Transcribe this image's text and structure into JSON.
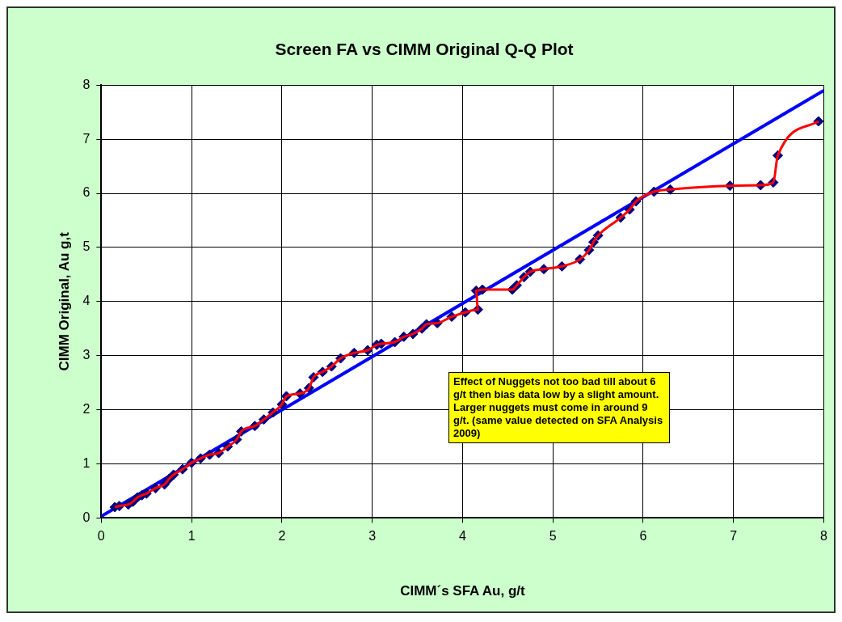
{
  "chart_data": {
    "type": "scatter",
    "title": "Screen FA vs CIMM Original Q-Q Plot",
    "xlabel": "CIMM´s SFA Au, g/t",
    "ylabel": "CIMM Original, Au g,t",
    "x": [
      0.15,
      0.2,
      0.3,
      0.35,
      0.4,
      0.45,
      0.5,
      0.6,
      0.7,
      0.75,
      0.8,
      0.9,
      1.0,
      1.1,
      1.2,
      1.3,
      1.4,
      1.5,
      1.55,
      1.7,
      1.8,
      1.9,
      2.0,
      2.05,
      2.2,
      2.3,
      2.35,
      2.45,
      2.55,
      2.65,
      2.8,
      2.95,
      3.05,
      3.1,
      3.25,
      3.35,
      3.45,
      3.55,
      3.6,
      3.72,
      3.88,
      4.03,
      4.17,
      4.15,
      4.22,
      4.55,
      4.6,
      4.68,
      4.75,
      4.9,
      5.1,
      5.3,
      5.4,
      5.45,
      5.5,
      5.75,
      5.85,
      5.92,
      6.12,
      6.3,
      6.96,
      7.3,
      7.44,
      7.49,
      7.94
    ],
    "series": [
      {
        "type": "line",
        "color": "#ff0000",
        "marker": "none",
        "values": [
          0.2,
          0.22,
          0.25,
          0.3,
          0.38,
          0.42,
          0.45,
          0.55,
          0.62,
          0.72,
          0.8,
          0.9,
          1.02,
          1.1,
          1.17,
          1.2,
          1.32,
          1.45,
          1.6,
          1.7,
          1.82,
          1.95,
          2.1,
          2.25,
          2.3,
          2.4,
          2.6,
          2.7,
          2.8,
          2.95,
          3.05,
          3.1,
          3.2,
          3.22,
          3.25,
          3.35,
          3.4,
          3.5,
          3.58,
          3.6,
          3.72,
          3.8,
          3.85,
          4.2,
          4.22,
          4.22,
          4.3,
          4.45,
          4.55,
          4.6,
          4.65,
          4.78,
          4.95,
          5.1,
          5.22,
          5.55,
          5.7,
          5.85,
          6.03,
          6.07,
          6.14,
          6.15,
          6.2,
          6.7,
          7.33
        ]
      },
      {
        "type": "scatter",
        "color": "#000080",
        "marker": "diamond",
        "values": [
          0.2,
          0.22,
          0.25,
          0.3,
          0.38,
          0.42,
          0.45,
          0.55,
          0.62,
          0.72,
          0.8,
          0.9,
          1.02,
          1.1,
          1.17,
          1.2,
          1.32,
          1.45,
          1.6,
          1.7,
          1.82,
          1.95,
          2.1,
          2.25,
          2.3,
          2.4,
          2.6,
          2.7,
          2.8,
          2.95,
          3.05,
          3.1,
          3.2,
          3.22,
          3.25,
          3.35,
          3.4,
          3.5,
          3.58,
          3.6,
          3.72,
          3.8,
          3.85,
          4.2,
          4.22,
          4.22,
          4.3,
          4.45,
          4.55,
          4.6,
          4.65,
          4.78,
          4.95,
          5.1,
          5.22,
          5.55,
          5.7,
          5.85,
          6.03,
          6.07,
          6.14,
          6.15,
          6.2,
          6.7,
          7.33
        ]
      },
      {
        "type": "line",
        "color": "#0000ff",
        "marker": "none",
        "x": [
          0,
          8
        ],
        "values": [
          0.03,
          7.9
        ]
      }
    ],
    "xlim": [
      0,
      8
    ],
    "ylim": [
      0,
      8
    ],
    "xticks": [
      0,
      1,
      2,
      3,
      4,
      5,
      6,
      7,
      8
    ],
    "yticks": [
      0,
      1,
      2,
      3,
      4,
      5,
      6,
      7,
      8
    ],
    "grid": true,
    "legend": false,
    "annotations": [
      "Effect of Nuggets not too bad till about 6 g/t  then bias data low by a slight amount. Larger nuggets must come in around 9 g/t. (same value detected on SFA Analysis 2009)"
    ]
  }
}
